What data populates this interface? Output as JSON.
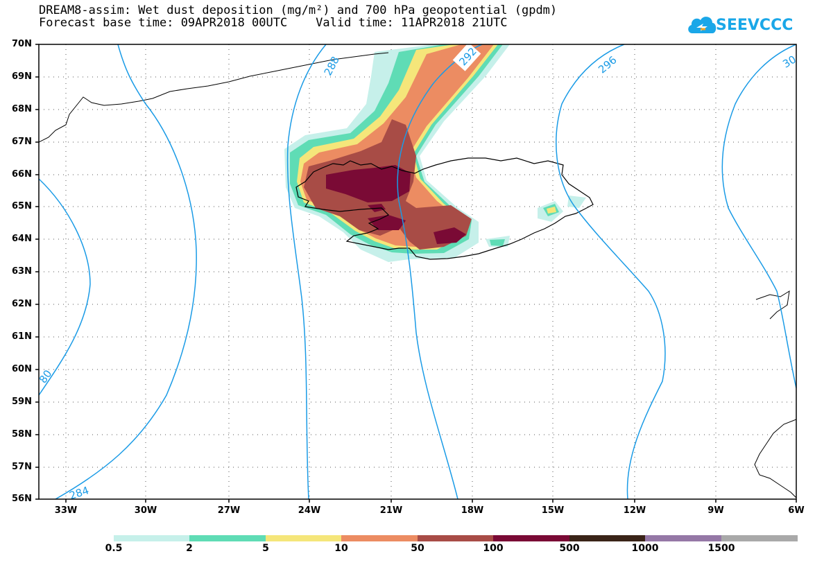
{
  "header": {
    "title_line1": "DREAM8-assim: Wet dust deposition (mg/m²) and 700 hPa geopotential (gpdm)",
    "title_line2": "Forecast base time: 09APR2018 00UTC    Valid time: 11APR2018 21UTC"
  },
  "logo": {
    "text": "SEEVCCC",
    "icon": "cloud-logo-icon"
  },
  "map": {
    "latitude_labels": [
      "70N",
      "69N",
      "68N",
      "67N",
      "66N",
      "65N",
      "64N",
      "63N",
      "62N",
      "61N",
      "60N",
      "59N",
      "58N",
      "57N",
      "56N"
    ],
    "longitude_labels": [
      "33W",
      "30W",
      "27W",
      "24W",
      "21W",
      "18W",
      "15W",
      "12W",
      "9W",
      "6W"
    ],
    "contour_labels": [
      "288",
      "292",
      "296",
      "284",
      "80",
      "30"
    ],
    "colors": {
      "contour": "#1a9be6",
      "coast": "#000000"
    }
  },
  "colorbar": {
    "labels": [
      "0.5",
      "2",
      "5",
      "10",
      "50",
      "100",
      "500",
      "1000",
      "1500"
    ],
    "colors": [
      "#c6f0ea",
      "#5fdcb5",
      "#f5e67a",
      "#ec8c62",
      "#a84c46",
      "#7a0a35",
      "#3a2418",
      "#9578a6",
      "#a9a9a9"
    ]
  }
}
